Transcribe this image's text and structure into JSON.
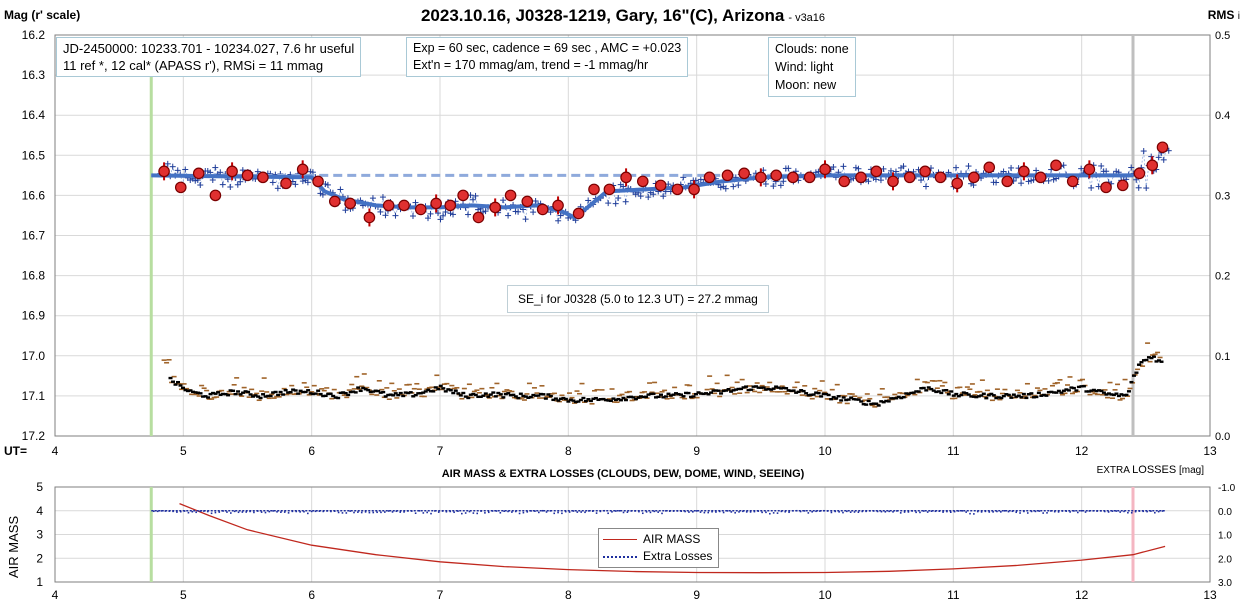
{
  "title": "2023.10.16, J0328-1219, Gary, 16\"(C), Arizona",
  "version": "- v3a16",
  "left_axis_title": "Mag (r' scale)",
  "right_axis_title": "RMS",
  "right_axis_title_sub": "i",
  "ut_label": "UT=",
  "info_box_1": {
    "line1": "JD-2450000: 10233.701 - 10234.027, 7.6 hr useful",
    "line2": "11 ref *, 12 cal*  (APASS r'), RMSi = 11 mmag"
  },
  "info_box_2": {
    "line1": "Exp = 60 sec, cadence = 69 sec , AMC = +0.023",
    "line2": "Ext'n = 170 mmag/am, trend = -1 mmag/hr"
  },
  "info_box_3": {
    "line1": "Clouds: none",
    "line2": "Wind:   light",
    "line3": "Moon:  new"
  },
  "se_note": "SE_i for J0328 (5.0 to 12.3 UT) = 27.2 mmag",
  "lower_title": "AIR MASS & EXTRA LOSSES (CLOUDS, DEW, DOME, WIND, SEEING)",
  "lower_left_axis_title": "AIR MASS",
  "lower_right_axis_title_a": "EXTRA",
  "lower_right_axis_title_b": "LOSSES",
  "lower_right_axis_title_c": "[mag]",
  "legend": {
    "airmass": "AIR MASS",
    "extra": "Extra Losses"
  },
  "colors": {
    "grid": "#d9d9d9",
    "fit_line": "#4472c4",
    "dashed_level": "#8faadc",
    "raw_points": "#1f3d99",
    "binned_fill": "#e03030",
    "binned_edge": "#7a0000",
    "rms_brown": "#a0642a",
    "rms_black": "#000000",
    "start_line": "#b7dea0",
    "end_line_top": "#bfbfbf",
    "end_line_bottom": "#f4b6c2",
    "airmass": "#c0281e",
    "extra_losses": "#1f2f9f"
  },
  "chart_data": [
    {
      "type": "scatter",
      "panel": "light curve",
      "xlabel": "UT",
      "ylabel": "Mag (r' scale)",
      "y2label": "RMS i",
      "xlim": [
        4,
        13
      ],
      "ylim": [
        16.2,
        17.2
      ],
      "y_inverted": true,
      "y2lim": [
        0,
        0.5
      ],
      "x_ticks": [
        4,
        5,
        6,
        7,
        8,
        9,
        10,
        11,
        12,
        13
      ],
      "y_ticks": [
        16.2,
        16.3,
        16.4,
        16.5,
        16.6,
        16.7,
        16.8,
        16.9,
        17.0,
        17.1,
        17.2
      ],
      "y2_ticks": [
        0.0,
        0.1,
        0.2,
        0.3,
        0.4,
        0.5
      ],
      "grid": true,
      "markers": {
        "start_ut": 4.75,
        "end_ut": 12.4
      },
      "reference_level": {
        "mag": 16.55,
        "x_from": 4.75,
        "x_to": 12.4
      },
      "fit_curve": [
        [
          4.75,
          16.55
        ],
        [
          6.0,
          16.555
        ],
        [
          6.1,
          16.59
        ],
        [
          6.25,
          16.61
        ],
        [
          6.5,
          16.625
        ],
        [
          6.75,
          16.63
        ],
        [
          7.0,
          16.63
        ],
        [
          7.25,
          16.625
        ],
        [
          7.5,
          16.63
        ],
        [
          7.75,
          16.625
        ],
        [
          7.95,
          16.64
        ],
        [
          8.05,
          16.655
        ],
        [
          8.15,
          16.63
        ],
        [
          8.3,
          16.59
        ],
        [
          8.6,
          16.585
        ],
        [
          8.9,
          16.58
        ],
        [
          9.2,
          16.565
        ],
        [
          9.5,
          16.555
        ],
        [
          10.0,
          16.55
        ],
        [
          11.0,
          16.55
        ],
        [
          12.4,
          16.55
        ]
      ],
      "binned_points": [
        [
          4.85,
          16.54
        ],
        [
          4.98,
          16.58
        ],
        [
          5.12,
          16.545
        ],
        [
          5.25,
          16.6
        ],
        [
          5.38,
          16.54
        ],
        [
          5.5,
          16.55
        ],
        [
          5.62,
          16.555
        ],
        [
          5.8,
          16.57
        ],
        [
          5.93,
          16.535
        ],
        [
          6.05,
          16.565
        ],
        [
          6.18,
          16.615
        ],
        [
          6.3,
          16.62
        ],
        [
          6.45,
          16.655
        ],
        [
          6.6,
          16.625
        ],
        [
          6.72,
          16.625
        ],
        [
          6.85,
          16.635
        ],
        [
          6.97,
          16.62
        ],
        [
          7.08,
          16.625
        ],
        [
          7.18,
          16.6
        ],
        [
          7.3,
          16.655
        ],
        [
          7.43,
          16.63
        ],
        [
          7.55,
          16.6
        ],
        [
          7.68,
          16.615
        ],
        [
          7.8,
          16.635
        ],
        [
          7.92,
          16.625
        ],
        [
          8.08,
          16.645
        ],
        [
          8.2,
          16.585
        ],
        [
          8.32,
          16.585
        ],
        [
          8.45,
          16.555
        ],
        [
          8.58,
          16.565
        ],
        [
          8.72,
          16.575
        ],
        [
          8.85,
          16.585
        ],
        [
          8.98,
          16.585
        ],
        [
          9.1,
          16.555
        ],
        [
          9.24,
          16.55
        ],
        [
          9.37,
          16.545
        ],
        [
          9.5,
          16.555
        ],
        [
          9.62,
          16.55
        ],
        [
          9.75,
          16.555
        ],
        [
          9.88,
          16.555
        ],
        [
          10.0,
          16.535
        ],
        [
          10.15,
          16.565
        ],
        [
          10.28,
          16.555
        ],
        [
          10.4,
          16.54
        ],
        [
          10.53,
          16.565
        ],
        [
          10.66,
          16.555
        ],
        [
          10.78,
          16.54
        ],
        [
          10.9,
          16.555
        ],
        [
          11.03,
          16.57
        ],
        [
          11.16,
          16.555
        ],
        [
          11.28,
          16.53
        ],
        [
          11.42,
          16.565
        ],
        [
          11.55,
          16.54
        ],
        [
          11.68,
          16.555
        ],
        [
          11.8,
          16.525
        ],
        [
          11.93,
          16.565
        ],
        [
          12.06,
          16.535
        ],
        [
          12.19,
          16.58
        ],
        [
          12.32,
          16.575
        ],
        [
          12.45,
          16.545
        ],
        [
          12.55,
          16.525
        ],
        [
          12.63,
          16.48
        ]
      ],
      "rms_running_mean": {
        "axis": "y2",
        "points": [
          [
            4.9,
            0.07
          ],
          [
            5.05,
            0.055
          ],
          [
            5.2,
            0.05
          ],
          [
            5.4,
            0.055
          ],
          [
            5.6,
            0.05
          ],
          [
            5.8,
            0.055
          ],
          [
            6.0,
            0.055
          ],
          [
            6.2,
            0.05
          ],
          [
            6.4,
            0.06
          ],
          [
            6.6,
            0.05
          ],
          [
            6.8,
            0.052
          ],
          [
            7.0,
            0.06
          ],
          [
            7.2,
            0.05
          ],
          [
            7.4,
            0.052
          ],
          [
            7.6,
            0.05
          ],
          [
            7.8,
            0.05
          ],
          [
            8.0,
            0.045
          ],
          [
            8.2,
            0.045
          ],
          [
            8.4,
            0.047
          ],
          [
            8.6,
            0.05
          ],
          [
            8.8,
            0.05
          ],
          [
            9.0,
            0.052
          ],
          [
            9.2,
            0.055
          ],
          [
            9.4,
            0.06
          ],
          [
            9.6,
            0.06
          ],
          [
            9.8,
            0.055
          ],
          [
            10.0,
            0.05
          ],
          [
            10.2,
            0.045
          ],
          [
            10.4,
            0.04
          ],
          [
            10.6,
            0.05
          ],
          [
            10.8,
            0.06
          ],
          [
            11.0,
            0.052
          ],
          [
            11.2,
            0.05
          ],
          [
            11.4,
            0.05
          ],
          [
            11.6,
            0.05
          ],
          [
            11.8,
            0.055
          ],
          [
            12.0,
            0.06
          ],
          [
            12.2,
            0.052
          ],
          [
            12.35,
            0.05
          ],
          [
            12.45,
            0.09
          ],
          [
            12.55,
            0.1
          ],
          [
            12.63,
            0.09
          ]
        ]
      }
    },
    {
      "type": "line",
      "panel": "air mass & extra losses",
      "xlabel": "UT",
      "ylabel": "AIR MASS",
      "y2label": "EXTRA LOSSES [mag]",
      "xlim": [
        4,
        13
      ],
      "ylim": [
        1,
        5
      ],
      "y2lim": [
        3.0,
        -1.0
      ],
      "x_ticks": [
        4,
        5,
        6,
        7,
        8,
        9,
        10,
        11,
        12,
        13
      ],
      "y_ticks": [
        1,
        2,
        3,
        4,
        5
      ],
      "y2_ticks": [
        "-1.0",
        "0.0",
        "1.0",
        "2.0",
        "3.0"
      ],
      "legend_position": "center",
      "series": [
        {
          "name": "AIR MASS",
          "points": [
            [
              4.97,
              4.3
            ],
            [
              5.2,
              3.8
            ],
            [
              5.5,
              3.2
            ],
            [
              6.0,
              2.55
            ],
            [
              6.5,
              2.15
            ],
            [
              7.0,
              1.85
            ],
            [
              7.5,
              1.65
            ],
            [
              8.0,
              1.52
            ],
            [
              8.5,
              1.44
            ],
            [
              9.0,
              1.4
            ],
            [
              9.5,
              1.39
            ],
            [
              10.0,
              1.4
            ],
            [
              10.5,
              1.45
            ],
            [
              11.0,
              1.55
            ],
            [
              11.5,
              1.7
            ],
            [
              12.0,
              1.92
            ],
            [
              12.4,
              2.15
            ],
            [
              12.65,
              2.5
            ]
          ]
        },
        {
          "name": "Extra Losses",
          "value_mag": 0.0,
          "x_from": 4.75,
          "x_to": 12.65
        }
      ]
    }
  ]
}
